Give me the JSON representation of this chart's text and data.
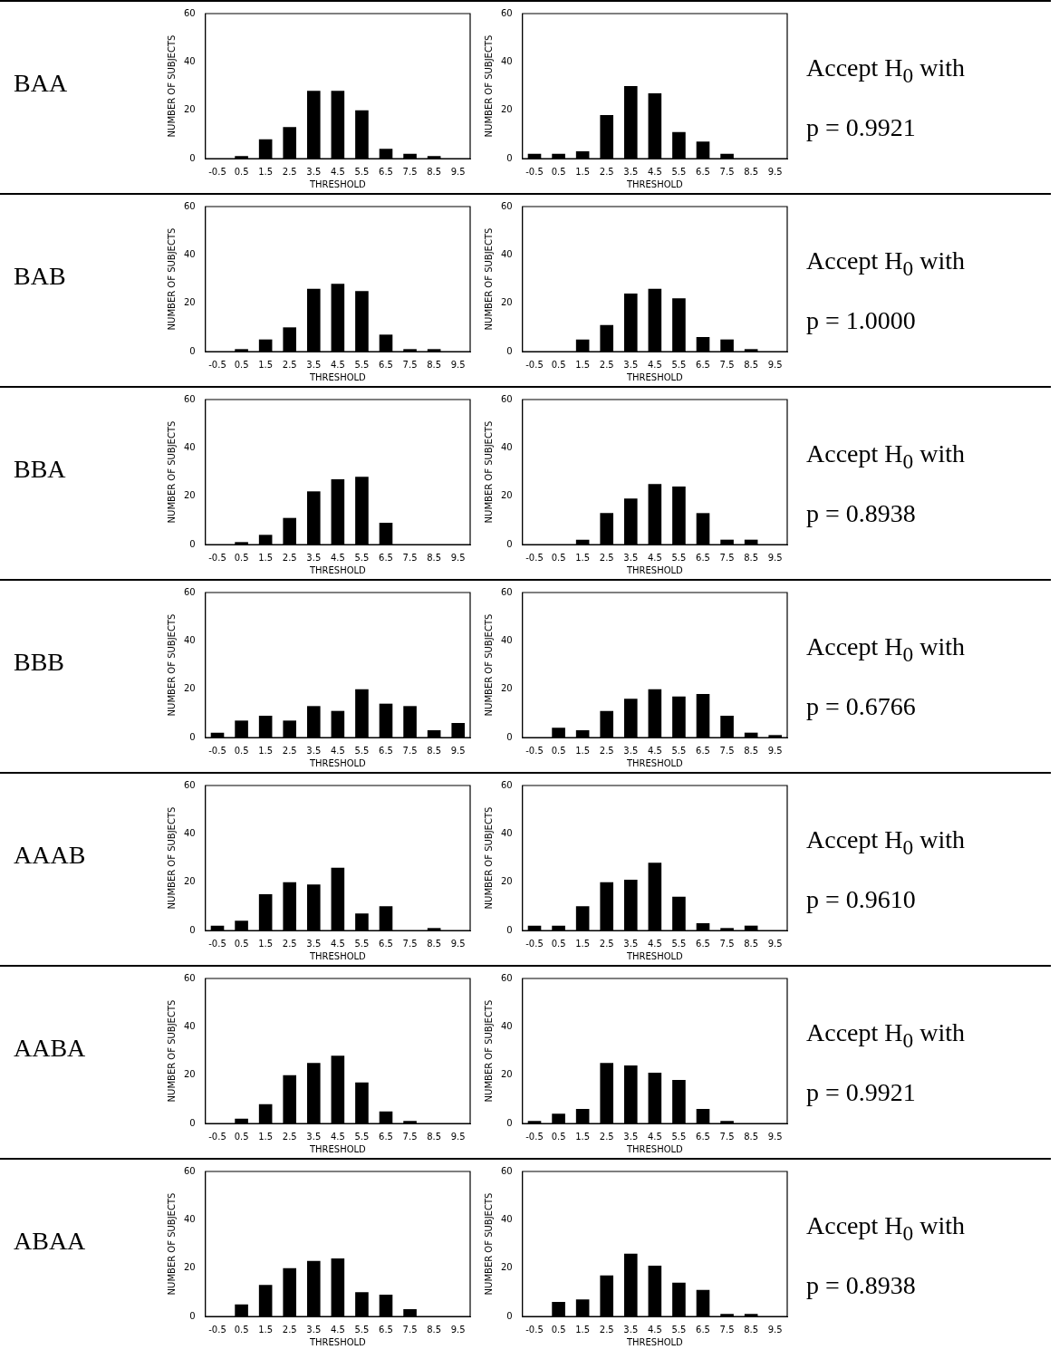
{
  "chart_data": [
    {
      "type": "bar",
      "categories": [
        "-0.5",
        "0.5",
        "1.5",
        "2.5",
        "3.5",
        "4.5",
        "5.5",
        "6.5",
        "7.5",
        "8.5",
        "9.5"
      ],
      "values": [
        0,
        1,
        8,
        13,
        28,
        28,
        20,
        4,
        2,
        1,
        0
      ],
      "color": "#000000",
      "ylim": [
        0,
        60
      ],
      "yticks": [
        0,
        20,
        40,
        60
      ],
      "xlabel": "THRESHOLD",
      "ylabel": "NUMBER OF SUBJECTS",
      "annotations": [
        "BAA"
      ]
    },
    {
      "type": "bar",
      "categories": [
        "-0.5",
        "0.5",
        "1.5",
        "2.5",
        "3.5",
        "4.5",
        "5.5",
        "6.5",
        "7.5",
        "8.5",
        "9.5"
      ],
      "values": [
        2,
        2,
        3,
        18,
        30,
        27,
        11,
        7,
        2,
        0,
        0
      ],
      "color": "#000000",
      "ylim": [
        0,
        60
      ],
      "yticks": [
        0,
        20,
        40,
        60
      ],
      "xlabel": "THRESHOLD",
      "ylabel": "NUMBER OF SUBJECTS",
      "annotations": [
        "Accept H$_{0}$ with",
        "p = 0.9921"
      ]
    },
    {
      "type": "bar",
      "categories": [
        "-0.5",
        "0.5",
        "1.5",
        "2.5",
        "3.5",
        "4.5",
        "5.5",
        "6.5",
        "7.5",
        "8.5",
        "9.5"
      ],
      "values": [
        0,
        1,
        5,
        10,
        26,
        28,
        25,
        7,
        1,
        1,
        0
      ],
      "color": "#000000",
      "ylim": [
        0,
        60
      ],
      "yticks": [
        0,
        20,
        40,
        60
      ],
      "xlabel": "THRESHOLD",
      "ylabel": "NUMBER OF SUBJECTS",
      "annotations": [
        "BAB"
      ]
    },
    {
      "type": "bar",
      "categories": [
        "-0.5",
        "0.5",
        "1.5",
        "2.5",
        "3.5",
        "4.5",
        "5.5",
        "6.5",
        "7.5",
        "8.5",
        "9.5"
      ],
      "values": [
        0,
        0,
        5,
        11,
        24,
        26,
        22,
        6,
        5,
        1,
        0
      ],
      "color": "#000000",
      "ylim": [
        0,
        60
      ],
      "yticks": [
        0,
        20,
        40,
        60
      ],
      "xlabel": "THRESHOLD",
      "ylabel": "NUMBER OF SUBJECTS",
      "annotations": [
        "Accept H$_{0}$ with",
        "p = 1.0000"
      ]
    },
    {
      "type": "bar",
      "categories": [
        "-0.5",
        "0.5",
        "1.5",
        "2.5",
        "3.5",
        "4.5",
        "5.5",
        "6.5",
        "7.5",
        "8.5",
        "9.5"
      ],
      "values": [
        0,
        1,
        4,
        11,
        22,
        27,
        28,
        9,
        0,
        0,
        0
      ],
      "color": "#000000",
      "ylim": [
        0,
        60
      ],
      "yticks": [
        0,
        20,
        40,
        60
      ],
      "xlabel": "THRESHOLD",
      "ylabel": "NUMBER OF SUBJECTS",
      "annotations": [
        "BBA"
      ]
    },
    {
      "type": "bar",
      "categories": [
        "-0.5",
        "0.5",
        "1.5",
        "2.5",
        "3.5",
        "4.5",
        "5.5",
        "6.5",
        "7.5",
        "8.5",
        "9.5"
      ],
      "values": [
        0,
        0,
        2,
        13,
        19,
        25,
        24,
        13,
        2,
        2,
        0
      ],
      "color": "#000000",
      "ylim": [
        0,
        60
      ],
      "yticks": [
        0,
        20,
        40,
        60
      ],
      "xlabel": "THRESHOLD",
      "ylabel": "NUMBER OF SUBJECTS",
      "annotations": [
        "Accept H$_{0}$ with",
        "p = 0.8938"
      ]
    },
    {
      "type": "bar",
      "categories": [
        "-0.5",
        "0.5",
        "1.5",
        "2.5",
        "3.5",
        "4.5",
        "5.5",
        "6.5",
        "7.5",
        "8.5",
        "9.5"
      ],
      "values": [
        2,
        7,
        9,
        7,
        13,
        11,
        20,
        14,
        13,
        3,
        6
      ],
      "color": "#000000",
      "ylim": [
        0,
        60
      ],
      "yticks": [
        0,
        20,
        40,
        60
      ],
      "xlabel": "THRESHOLD",
      "ylabel": "NUMBER OF SUBJECTS",
      "annotations": [
        "BBB"
      ]
    },
    {
      "type": "bar",
      "categories": [
        "-0.5",
        "0.5",
        "1.5",
        "2.5",
        "3.5",
        "4.5",
        "5.5",
        "6.5",
        "7.5",
        "8.5",
        "9.5"
      ],
      "values": [
        0,
        4,
        3,
        11,
        16,
        20,
        17,
        18,
        9,
        2,
        1
      ],
      "color": "#000000",
      "ylim": [
        0,
        60
      ],
      "yticks": [
        0,
        20,
        40,
        60
      ],
      "xlabel": "THRESHOLD",
      "ylabel": "NUMBER OF SUBJECTS",
      "annotations": [
        "Accept H$_{0}$ with",
        "p = 0.6766"
      ]
    },
    {
      "type": "bar",
      "categories": [
        "-0.5",
        "0.5",
        "1.5",
        "2.5",
        "3.5",
        "4.5",
        "5.5",
        "6.5",
        "7.5",
        "8.5",
        "9.5"
      ],
      "values": [
        2,
        4,
        15,
        20,
        19,
        26,
        7,
        10,
        0,
        1,
        0
      ],
      "color": "#000000",
      "ylim": [
        0,
        60
      ],
      "yticks": [
        0,
        20,
        40,
        60
      ],
      "xlabel": "THRESHOLD",
      "ylabel": "NUMBER OF SUBJECTS",
      "annotations": [
        "AAAB"
      ]
    },
    {
      "type": "bar",
      "categories": [
        "-0.5",
        "0.5",
        "1.5",
        "2.5",
        "3.5",
        "4.5",
        "5.5",
        "6.5",
        "7.5",
        "8.5",
        "9.5"
      ],
      "values": [
        2,
        2,
        10,
        20,
        21,
        28,
        14,
        3,
        1,
        2,
        0
      ],
      "color": "#000000",
      "ylim": [
        0,
        60
      ],
      "yticks": [
        0,
        20,
        40,
        60
      ],
      "xlabel": "THRESHOLD",
      "ylabel": "NUMBER OF SUBJECTS",
      "annotations": [
        "Accept H$_{0}$ with",
        "p = 0.9610"
      ]
    },
    {
      "type": "bar",
      "categories": [
        "-0.5",
        "0.5",
        "1.5",
        "2.5",
        "3.5",
        "4.5",
        "5.5",
        "6.5",
        "7.5",
        "8.5",
        "9.5"
      ],
      "values": [
        0,
        2,
        8,
        20,
        25,
        28,
        17,
        5,
        1,
        0,
        0
      ],
      "color": "#000000",
      "ylim": [
        0,
        60
      ],
      "yticks": [
        0,
        20,
        40,
        60
      ],
      "xlabel": "THRESHOLD",
      "ylabel": "NUMBER OF SUBJECTS",
      "annotations": [
        "AABA"
      ]
    },
    {
      "type": "bar",
      "categories": [
        "-0.5",
        "0.5",
        "1.5",
        "2.5",
        "3.5",
        "4.5",
        "5.5",
        "6.5",
        "7.5",
        "8.5",
        "9.5"
      ],
      "values": [
        1,
        4,
        6,
        25,
        24,
        21,
        18,
        6,
        1,
        0,
        0
      ],
      "color": "#000000",
      "ylim": [
        0,
        60
      ],
      "yticks": [
        0,
        20,
        40,
        60
      ],
      "xlabel": "THRESHOLD",
      "ylabel": "NUMBER OF SUBJECTS",
      "annotations": [
        "Accept H$_{0}$ with",
        "p = 0.9921"
      ]
    },
    {
      "type": "bar",
      "categories": [
        "-0.5",
        "0.5",
        "1.5",
        "2.5",
        "3.5",
        "4.5",
        "5.5",
        "6.5",
        "7.5",
        "8.5",
        "9.5"
      ],
      "values": [
        0,
        5,
        13,
        20,
        23,
        24,
        10,
        9,
        3,
        0,
        0
      ],
      "color": "#000000",
      "ylim": [
        0,
        60
      ],
      "yticks": [
        0,
        20,
        40,
        60
      ],
      "xlabel": "THRESHOLD",
      "ylabel": "NUMBER OF SUBJECTS",
      "annotations": [
        "ABAA"
      ]
    },
    {
      "type": "bar",
      "categories": [
        "-0.5",
        "0.5",
        "1.5",
        "2.5",
        "3.5",
        "4.5",
        "5.5",
        "6.5",
        "7.5",
        "8.5",
        "9.5"
      ],
      "values": [
        0,
        6,
        7,
        17,
        26,
        21,
        14,
        11,
        1,
        1,
        0
      ],
      "color": "#000000",
      "ylim": [
        0,
        60
      ],
      "yticks": [
        0,
        20,
        40,
        60
      ],
      "xlabel": "THRESHOLD",
      "ylabel": "NUMBER OF SUBJECTS",
      "annotations": [
        "Accept H$_{0}$ with",
        "p = 0.8938"
      ]
    }
  ]
}
